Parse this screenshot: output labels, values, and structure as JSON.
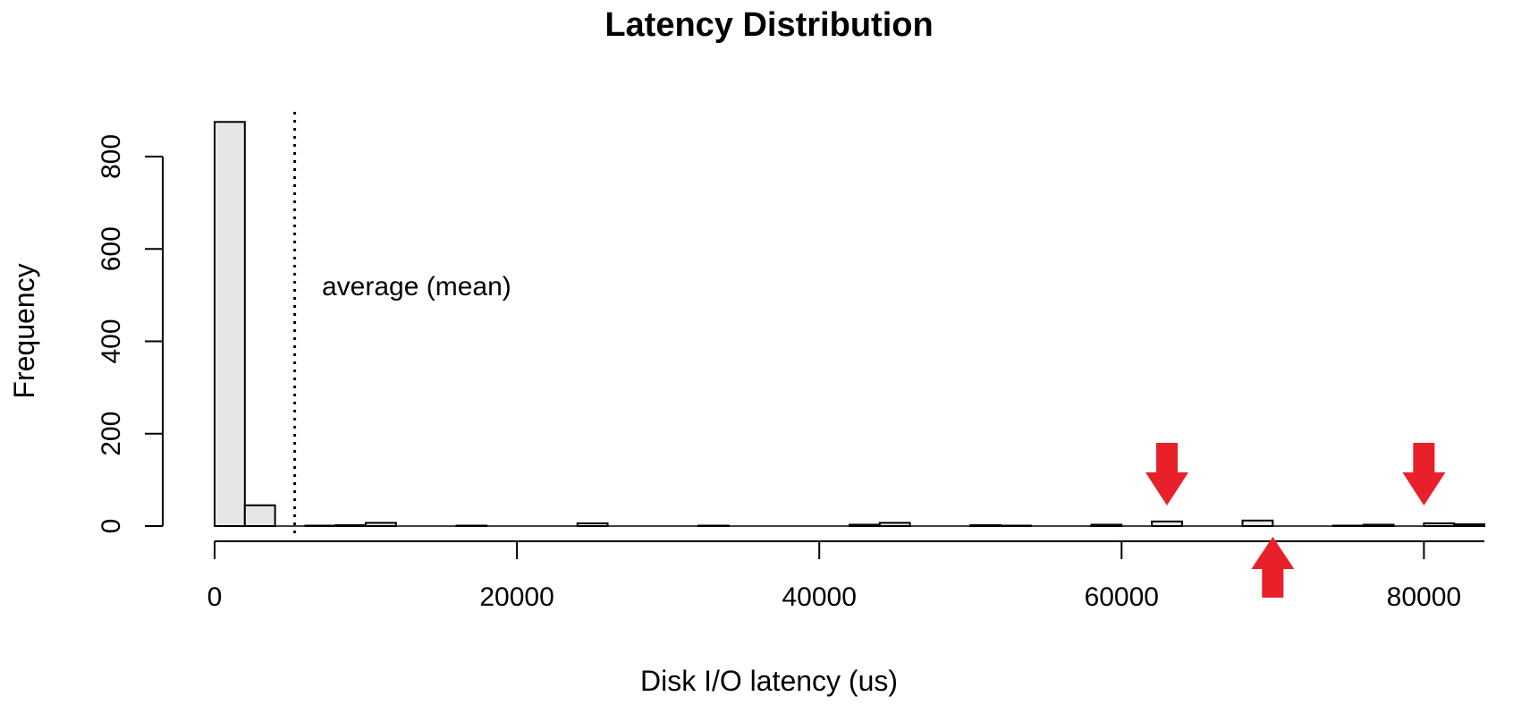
{
  "chart_data": {
    "type": "bar",
    "subtype": "histogram",
    "title": "Latency Distribution",
    "xlabel": "Disk I/O latency (us)",
    "ylabel": "Frequency",
    "xlim": [
      0,
      84000
    ],
    "ylim": [
      0,
      880
    ],
    "bin_width": 2000,
    "x_ticks": [
      0,
      20000,
      40000,
      60000,
      80000
    ],
    "x_tick_labels": [
      "0",
      "20000",
      "40000",
      "60000",
      "80000"
    ],
    "y_ticks": [
      0,
      200,
      400,
      600,
      800
    ],
    "y_tick_labels": [
      "0",
      "200",
      "400",
      "600",
      "800"
    ],
    "bins": [
      {
        "start": 0,
        "end": 2000,
        "count": 875
      },
      {
        "start": 2000,
        "end": 4000,
        "count": 45
      },
      {
        "start": 6000,
        "end": 8000,
        "count": 1
      },
      {
        "start": 8000,
        "end": 10000,
        "count": 2
      },
      {
        "start": 10000,
        "end": 12000,
        "count": 7
      },
      {
        "start": 16000,
        "end": 18000,
        "count": 1
      },
      {
        "start": 24000,
        "end": 26000,
        "count": 6
      },
      {
        "start": 32000,
        "end": 34000,
        "count": 1
      },
      {
        "start": 42000,
        "end": 44000,
        "count": 3
      },
      {
        "start": 44000,
        "end": 46000,
        "count": 7
      },
      {
        "start": 50000,
        "end": 52000,
        "count": 2
      },
      {
        "start": 52000,
        "end": 54000,
        "count": 1
      },
      {
        "start": 58000,
        "end": 60000,
        "count": 3
      },
      {
        "start": 62000,
        "end": 64000,
        "count": 10
      },
      {
        "start": 68000,
        "end": 70000,
        "count": 12
      },
      {
        "start": 74000,
        "end": 76000,
        "count": 1
      },
      {
        "start": 76000,
        "end": 78000,
        "count": 3
      },
      {
        "start": 80000,
        "end": 82000,
        "count": 6
      },
      {
        "start": 82000,
        "end": 84000,
        "count": 4
      }
    ],
    "mean_line": {
      "x": 5300,
      "label": "average (mean)",
      "style": "dotted"
    },
    "markers": [
      {
        "x": 63000,
        "direction": "down",
        "color": "#e8202a"
      },
      {
        "x": 70000,
        "direction": "up",
        "color": "#e8202a"
      },
      {
        "x": 80000,
        "direction": "down",
        "color": "#e8202a"
      }
    ],
    "bar_fill": "#e6e6e6",
    "bar_stroke": "#000000",
    "grid": false,
    "legend": "none"
  }
}
